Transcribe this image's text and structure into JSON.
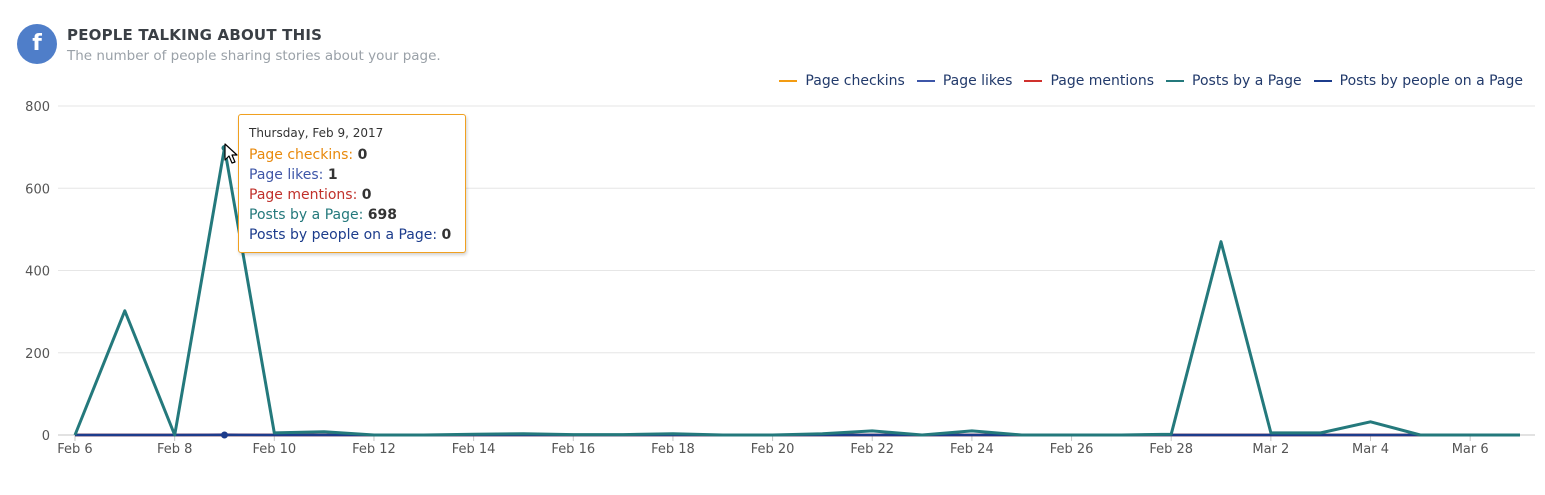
{
  "header": {
    "icon": "facebook-icon",
    "title": "PEOPLE TALKING ABOUT THIS",
    "subtitle": "The number of people sharing stories about your page."
  },
  "tooltip": {
    "date": "Thursday, Feb 9, 2017",
    "rows": [
      {
        "label": "Page checkins",
        "sep": ": ",
        "value": "0",
        "color": "#e8890c"
      },
      {
        "label": "Page likes",
        "sep": ": ",
        "value": "1",
        "color": "#3d56a8"
      },
      {
        "label": "Page mentions",
        "sep": ": ",
        "value": "0",
        "color": "#c0312b"
      },
      {
        "label": "Posts by a Page",
        "sep": ": ",
        "value": "698",
        "color": "#24797c"
      },
      {
        "label": "Posts by people on a Page",
        "sep": ": ",
        "value": "0",
        "color": "#1c3c8c"
      }
    ]
  },
  "chart_data": {
    "type": "line",
    "ylim": [
      0,
      800
    ],
    "yticks": [
      0,
      200,
      400,
      600,
      800
    ],
    "grid": true,
    "legend_position": "top-right",
    "x": [
      "Feb 6",
      "Feb 7",
      "Feb 8",
      "Feb 9",
      "Feb 10",
      "Feb 11",
      "Feb 12",
      "Feb 13",
      "Feb 14",
      "Feb 15",
      "Feb 16",
      "Feb 17",
      "Feb 18",
      "Feb 19",
      "Feb 20",
      "Feb 21",
      "Feb 22",
      "Feb 23",
      "Feb 24",
      "Feb 25",
      "Feb 26",
      "Feb 27",
      "Feb 28",
      "Mar 1",
      "Mar 2",
      "Mar 3",
      "Mar 4",
      "Mar 5",
      "Mar 6",
      "Mar 7"
    ],
    "xticks": [
      "Feb 6",
      "Feb 8",
      "Feb 10",
      "Feb 12",
      "Feb 14",
      "Feb 16",
      "Feb 18",
      "Feb 20",
      "Feb 22",
      "Feb 24",
      "Feb 26",
      "Feb 28",
      "Mar 2",
      "Mar 4",
      "Mar 6"
    ],
    "series": [
      {
        "name": "Page checkins",
        "color": "#f39c12",
        "values": [
          0,
          0,
          0,
          0,
          0,
          0,
          0,
          0,
          0,
          0,
          0,
          0,
          0,
          0,
          0,
          0,
          0,
          0,
          0,
          0,
          0,
          0,
          0,
          0,
          0,
          0,
          0,
          0,
          0,
          0
        ]
      },
      {
        "name": "Page likes",
        "color": "#3d56a8",
        "values": [
          0,
          0,
          0,
          1,
          0,
          0,
          0,
          0,
          0,
          0,
          0,
          0,
          0,
          0,
          0,
          0,
          0,
          0,
          0,
          0,
          0,
          0,
          0,
          0,
          0,
          0,
          0,
          0,
          0,
          0
        ]
      },
      {
        "name": "Page mentions",
        "color": "#d0312d",
        "values": [
          0,
          0,
          0,
          0,
          0,
          0,
          0,
          0,
          0,
          0,
          0,
          0,
          0,
          0,
          0,
          0,
          0,
          0,
          0,
          0,
          0,
          0,
          0,
          0,
          0,
          0,
          0,
          0,
          0,
          0
        ]
      },
      {
        "name": "Posts by a Page",
        "color": "#24797c",
        "values": [
          0,
          302,
          0,
          698,
          5,
          8,
          0,
          0,
          2,
          3,
          1,
          1,
          3,
          0,
          0,
          3,
          10,
          0,
          10,
          0,
          0,
          0,
          2,
          470,
          5,
          5,
          32,
          0,
          0,
          0
        ]
      },
      {
        "name": "Posts by people on a Page",
        "color": "#1c3c8c",
        "values": [
          0,
          0,
          0,
          0,
          0,
          0,
          0,
          0,
          0,
          0,
          0,
          0,
          0,
          0,
          0,
          0,
          0,
          0,
          0,
          0,
          0,
          0,
          0,
          0,
          0,
          0,
          0,
          0,
          0,
          0
        ]
      }
    ],
    "highlight": {
      "x": "Feb 9",
      "series": "Posts by a Page"
    }
  }
}
